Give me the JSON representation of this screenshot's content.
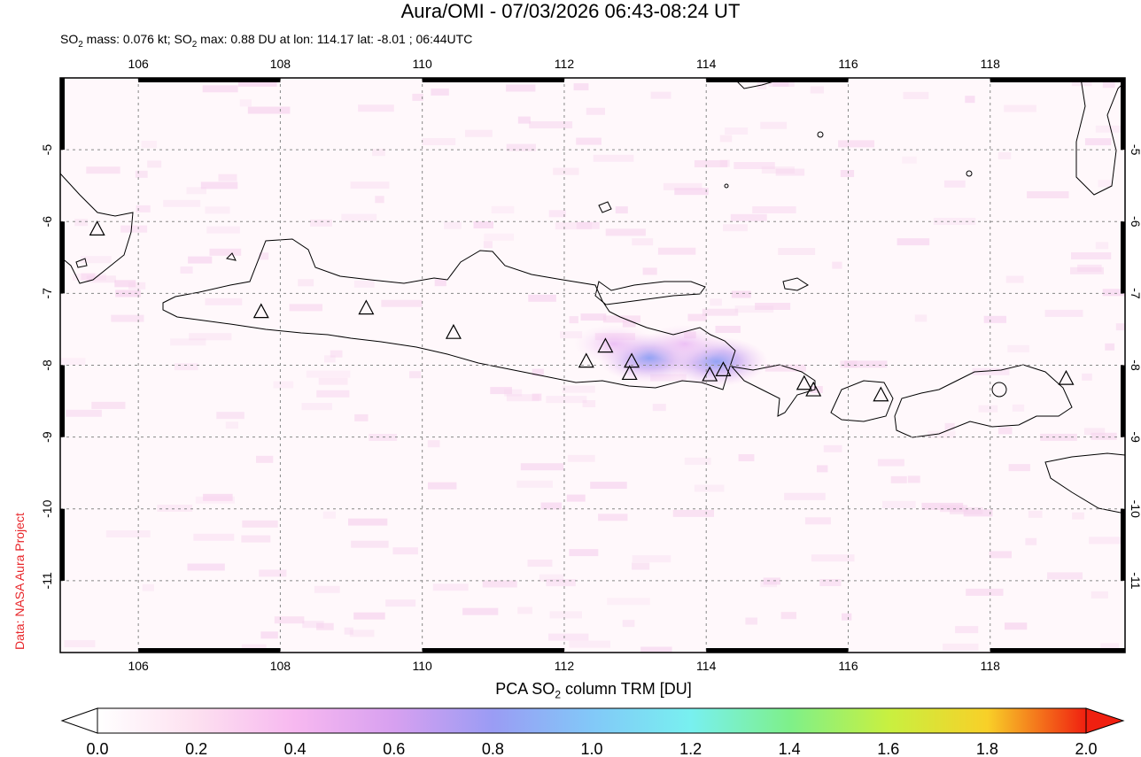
{
  "header": {
    "title": "Aura/OMI - 07/03/2026 06:43-08:24 UT",
    "subtitle_prefix": "SO",
    "subtitle_sub": "2",
    "subtitle_mid": " mass: 0.076 kt; SO",
    "subtitle_sub2": "2",
    "subtitle_rest": " max: 0.88 DU at lon: 114.17 lat: -8.01 ; 06:44UTC"
  },
  "credit": "Data: NASA Aura Project",
  "map": {
    "lon_ticks": [
      "106",
      "108",
      "110",
      "112",
      "114",
      "116",
      "118"
    ],
    "lat_ticks": [
      "-5",
      "-6",
      "-7",
      "-8",
      "-9",
      "-10",
      "-11"
    ],
    "lon_range": [
      104.9,
      119.9
    ],
    "lat_range": [
      -12.0,
      -4.0
    ],
    "grid": true,
    "max_value": {
      "lon": 114.17,
      "lat": -8.01,
      "value_du": 0.88
    },
    "volcanoes": [
      {
        "lon": 105.42,
        "lat": -6.1
      },
      {
        "lon": 107.73,
        "lat": -7.25
      },
      {
        "lon": 109.21,
        "lat": -7.2
      },
      {
        "lon": 110.44,
        "lat": -7.54
      },
      {
        "lon": 112.31,
        "lat": -7.94
      },
      {
        "lon": 112.58,
        "lat": -7.73
      },
      {
        "lon": 112.95,
        "lat": -7.94
      },
      {
        "lon": 112.92,
        "lat": -8.11
      },
      {
        "lon": 114.05,
        "lat": -8.13
      },
      {
        "lon": 114.24,
        "lat": -8.06
      },
      {
        "lon": 115.38,
        "lat": -8.25
      },
      {
        "lon": 115.51,
        "lat": -8.34
      },
      {
        "lon": 116.46,
        "lat": -8.41
      },
      {
        "lon": 119.07,
        "lat": -8.18
      }
    ],
    "so2_plumes": [
      {
        "lon": 113.2,
        "lat": -7.9,
        "value": 0.6
      },
      {
        "lon": 114.15,
        "lat": -7.95,
        "value": 0.65
      },
      {
        "lon": 112.7,
        "lat": -7.7,
        "value": 0.35
      },
      {
        "lon": 113.7,
        "lat": -7.7,
        "value": 0.3
      }
    ]
  },
  "colorbar": {
    "title_prefix": "PCA SO",
    "title_sub": "2",
    "title_rest": " column TRM [DU]",
    "labels": [
      "0.0",
      "0.2",
      "0.4",
      "0.6",
      "0.8",
      "1.0",
      "1.2",
      "1.4",
      "1.6",
      "1.8",
      "2.0"
    ],
    "colors": [
      "#ffffff",
      "#fde0f0",
      "#f7b8f0",
      "#d7a0f0",
      "#9a9cf4",
      "#82c8f8",
      "#78f0f0",
      "#7ef08a",
      "#c8f040",
      "#f8d028",
      "#f88820",
      "#f02010"
    ]
  }
}
